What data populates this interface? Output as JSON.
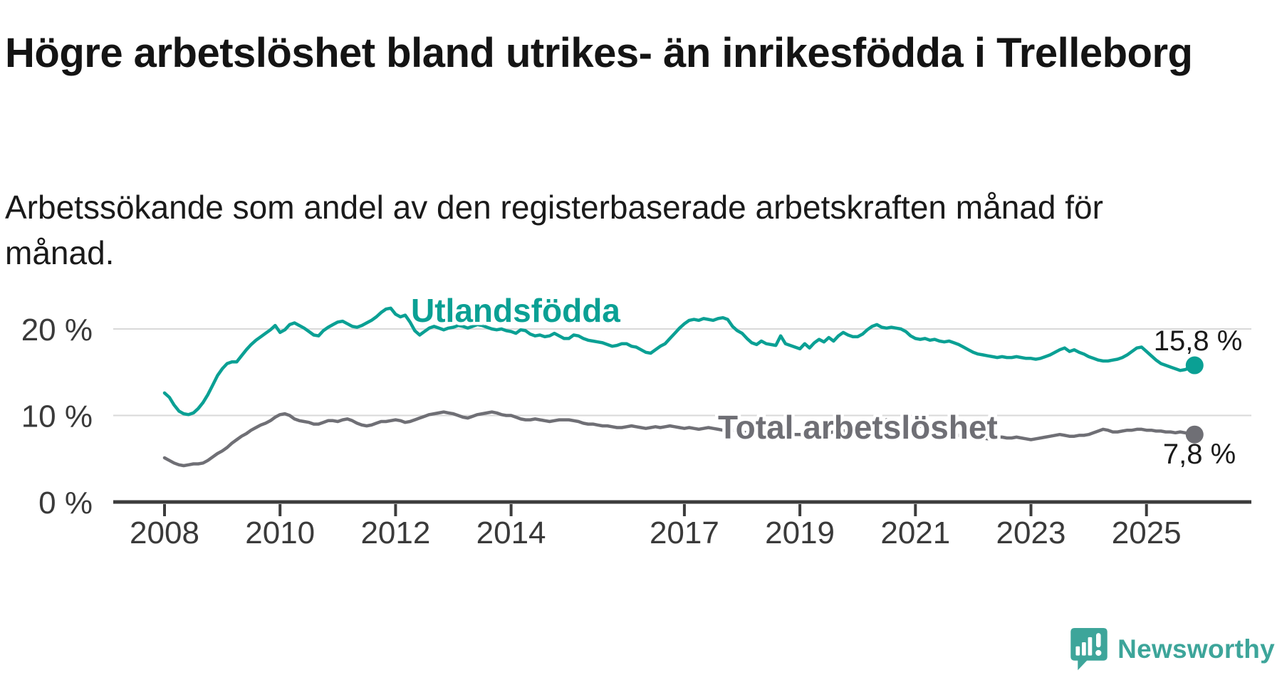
{
  "title": "Högre arbetslöshet bland utrikes- än inrikesfödda i Trelleborg",
  "subtitle": "Arbetssökande som andel av den registerbaserade arbetskraften månad för månad.",
  "branding": {
    "logo_text": "Newsworthy",
    "logo_icon": "newsworthy-speech-bubble-bar-chart-icon",
    "logo_color": "#3da59a"
  },
  "chart_data": {
    "type": "line",
    "unit": "%",
    "frequency": "monthly",
    "start": "2008-01",
    "end": "2025-11",
    "grid": "horizontal",
    "ylim": [
      0,
      23.5
    ],
    "x_ticks": [
      2008,
      2010,
      2012,
      2014,
      2017,
      2019,
      2021,
      2023,
      2025
    ],
    "y_ticks": [
      {
        "value": 0,
        "label": "0 %"
      },
      {
        "value": 10,
        "label": "10 %"
      },
      {
        "value": 20,
        "label": "20 %"
      }
    ],
    "colors": {
      "axis": "#3c3c3c",
      "grid": "#d9d9d9",
      "tick_text": "#3a3a3a",
      "value_label_text": "#1a1a1a"
    },
    "series": [
      {
        "name": "Utlandsfödda",
        "color": "#0aa094",
        "end_value": 15.8,
        "end_value_label": "15,8 %",
        "values": [
          12.6,
          12.1,
          11.2,
          10.5,
          10.2,
          10.1,
          10.3,
          10.8,
          11.5,
          12.4,
          13.5,
          14.6,
          15.4,
          16.0,
          16.2,
          16.2,
          16.9,
          17.6,
          18.2,
          18.7,
          19.1,
          19.5,
          19.9,
          20.4,
          19.6,
          19.9,
          20.5,
          20.7,
          20.4,
          20.1,
          19.7,
          19.3,
          19.2,
          19.8,
          20.2,
          20.5,
          20.8,
          20.9,
          20.6,
          20.3,
          20.2,
          20.4,
          20.7,
          21.0,
          21.4,
          21.9,
          22.3,
          22.4,
          21.7,
          21.4,
          21.6,
          20.8,
          19.8,
          19.3,
          19.7,
          20.1,
          20.3,
          20.1,
          19.9,
          20.1,
          20.2,
          20.4,
          20.3,
          20.1,
          20.3,
          20.5,
          20.4,
          20.2,
          20.0,
          19.9,
          20.0,
          19.8,
          19.7,
          19.5,
          19.9,
          19.8,
          19.4,
          19.2,
          19.3,
          19.1,
          19.2,
          19.5,
          19.2,
          18.9,
          18.9,
          19.3,
          19.2,
          18.9,
          18.7,
          18.6,
          18.5,
          18.4,
          18.2,
          18.0,
          18.1,
          18.3,
          18.3,
          18.0,
          17.9,
          17.6,
          17.3,
          17.2,
          17.6,
          18.0,
          18.3,
          18.9,
          19.5,
          20.1,
          20.6,
          21.0,
          21.1,
          21.0,
          21.2,
          21.1,
          21.0,
          21.2,
          21.3,
          21.1,
          20.3,
          19.8,
          19.5,
          18.9,
          18.4,
          18.2,
          18.6,
          18.3,
          18.2,
          18.1,
          19.2,
          18.3,
          18.1,
          17.9,
          17.7,
          18.3,
          17.8,
          18.4,
          18.8,
          18.5,
          19.0,
          18.6,
          19.2,
          19.6,
          19.3,
          19.1,
          19.1,
          19.4,
          19.9,
          20.3,
          20.5,
          20.2,
          20.1,
          20.2,
          20.1,
          20.0,
          19.7,
          19.2,
          18.9,
          18.8,
          18.9,
          18.7,
          18.8,
          18.6,
          18.5,
          18.6,
          18.4,
          18.2,
          17.9,
          17.6,
          17.3,
          17.1,
          17.0,
          16.9,
          16.8,
          16.7,
          16.8,
          16.7,
          16.7,
          16.8,
          16.7,
          16.6,
          16.6,
          16.5,
          16.6,
          16.8,
          17.0,
          17.3,
          17.6,
          17.8,
          17.4,
          17.6,
          17.3,
          17.1,
          16.8,
          16.6,
          16.4,
          16.3,
          16.3,
          16.4,
          16.5,
          16.7,
          17.0,
          17.4,
          17.8,
          17.9,
          17.4,
          16.9,
          16.4,
          16.0,
          15.8,
          15.6,
          15.4,
          15.2,
          15.3,
          15.5,
          15.8
        ]
      },
      {
        "name": "Total arbetslöshet",
        "color": "#6f6f75",
        "end_value": 7.8,
        "end_value_label": "7,8 %",
        "values": [
          5.1,
          4.8,
          4.5,
          4.3,
          4.2,
          4.3,
          4.4,
          4.4,
          4.5,
          4.8,
          5.2,
          5.6,
          5.9,
          6.3,
          6.8,
          7.2,
          7.6,
          7.9,
          8.3,
          8.6,
          8.9,
          9.1,
          9.4,
          9.8,
          10.1,
          10.2,
          10.0,
          9.6,
          9.4,
          9.3,
          9.2,
          9.0,
          9.0,
          9.2,
          9.4,
          9.4,
          9.3,
          9.5,
          9.6,
          9.4,
          9.1,
          8.9,
          8.8,
          8.9,
          9.1,
          9.3,
          9.3,
          9.4,
          9.5,
          9.4,
          9.2,
          9.3,
          9.5,
          9.7,
          9.9,
          10.1,
          10.2,
          10.3,
          10.4,
          10.3,
          10.2,
          10.0,
          9.8,
          9.7,
          9.9,
          10.1,
          10.2,
          10.3,
          10.4,
          10.3,
          10.1,
          10.0,
          10.0,
          9.8,
          9.6,
          9.5,
          9.5,
          9.6,
          9.5,
          9.4,
          9.3,
          9.4,
          9.5,
          9.5,
          9.5,
          9.4,
          9.3,
          9.1,
          9.0,
          9.0,
          8.9,
          8.8,
          8.8,
          8.7,
          8.6,
          8.6,
          8.7,
          8.8,
          8.7,
          8.6,
          8.5,
          8.6,
          8.7,
          8.6,
          8.7,
          8.8,
          8.7,
          8.6,
          8.5,
          8.6,
          8.5,
          8.4,
          8.5,
          8.6,
          8.5,
          8.4,
          8.3,
          8.4,
          8.3,
          8.2,
          8.1,
          8.0,
          7.9,
          7.8,
          7.7,
          7.8,
          7.9,
          7.8,
          7.7,
          7.8,
          7.9,
          7.8,
          7.8,
          7.7,
          7.6,
          7.7,
          7.8,
          7.9,
          8.0,
          8.1,
          8.1,
          8.2,
          8.3,
          8.4,
          8.4,
          8.4,
          8.6,
          9.0,
          9.3,
          9.5,
          9.5,
          9.4,
          9.3,
          9.2,
          9.1,
          9.0,
          8.9,
          8.8,
          8.6,
          8.4,
          8.2,
          8.1,
          8.0,
          7.9,
          7.8,
          7.7,
          7.6,
          7.5,
          7.5,
          7.4,
          7.4,
          7.3,
          7.4,
          7.5,
          7.5,
          7.4,
          7.4,
          7.5,
          7.4,
          7.3,
          7.2,
          7.3,
          7.4,
          7.5,
          7.6,
          7.7,
          7.8,
          7.7,
          7.6,
          7.6,
          7.7,
          7.7,
          7.8,
          8.0,
          8.2,
          8.4,
          8.3,
          8.1,
          8.1,
          8.2,
          8.3,
          8.3,
          8.4,
          8.4,
          8.3,
          8.3,
          8.2,
          8.2,
          8.1,
          8.1,
          8.0,
          8.1,
          8.0,
          7.9,
          7.8
        ]
      }
    ]
  }
}
